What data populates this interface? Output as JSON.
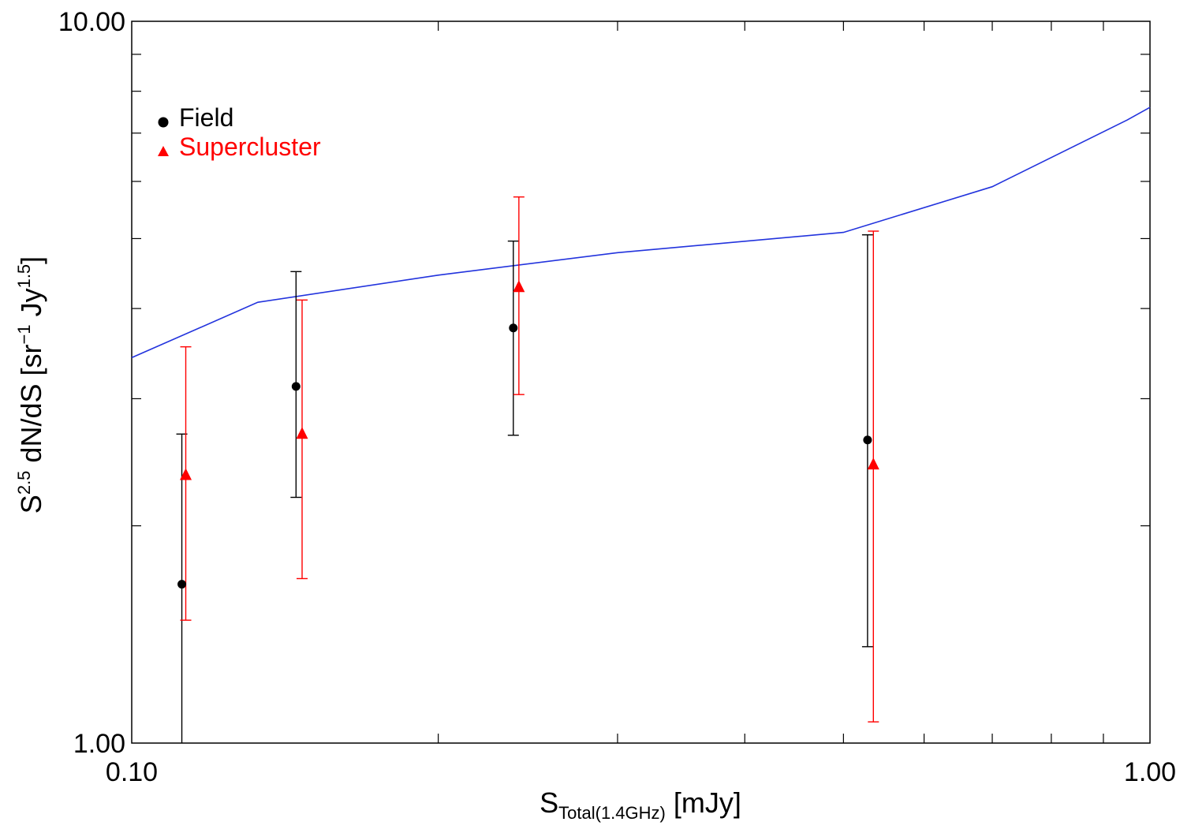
{
  "chart_data": {
    "type": "scatter",
    "x_scale": "log",
    "y_scale": "log",
    "xlim": [
      0.1,
      1.0
    ],
    "ylim": [
      1.0,
      10.0
    ],
    "x_ticks": [
      {
        "value": 0.1,
        "label": "0.10"
      },
      {
        "value": 1.0,
        "label": "1.00"
      }
    ],
    "y_ticks": [
      {
        "value": 1.0,
        "label": "1.00"
      },
      {
        "value": 10.0,
        "label": "10.00"
      }
    ],
    "xlabel": {
      "base": "S",
      "sub": "Total(1.4GHz)",
      "unit": "[mJy]"
    },
    "ylabel": {
      "base": "S",
      "sup1": "2.5",
      "mid": " dN/dS  [sr",
      "sup2": "−1",
      "mid2": " Jy",
      "sup3": "1.5",
      "end": "]"
    },
    "legend_position": "top-left",
    "series": [
      {
        "name": "Field",
        "marker": "circle",
        "color": "#000000",
        "x": [
          0.112,
          0.145,
          0.237,
          0.528
        ],
        "y": [
          1.66,
          3.12,
          3.76,
          2.63
        ],
        "y_low": [
          0.98,
          2.19,
          2.67,
          1.36
        ],
        "y_high": [
          2.68,
          4.5,
          4.96,
          5.06
        ]
      },
      {
        "name": "Supercluster",
        "marker": "triangle",
        "color": "#ff0000",
        "x": [
          0.113,
          0.147,
          0.24,
          0.535
        ],
        "y": [
          2.35,
          2.68,
          4.28,
          2.43
        ],
        "y_low": [
          1.48,
          1.69,
          3.04,
          1.07
        ],
        "y_high": [
          3.54,
          4.11,
          5.71,
          5.12
        ]
      },
      {
        "marker": "line",
        "color": "#2233dd",
        "x": [
          0.1,
          0.133,
          0.2,
          0.3,
          0.5,
          0.7,
          0.95,
          1.0
        ],
        "y": [
          3.42,
          4.08,
          4.45,
          4.78,
          5.1,
          5.9,
          7.3,
          7.6
        ]
      }
    ]
  }
}
